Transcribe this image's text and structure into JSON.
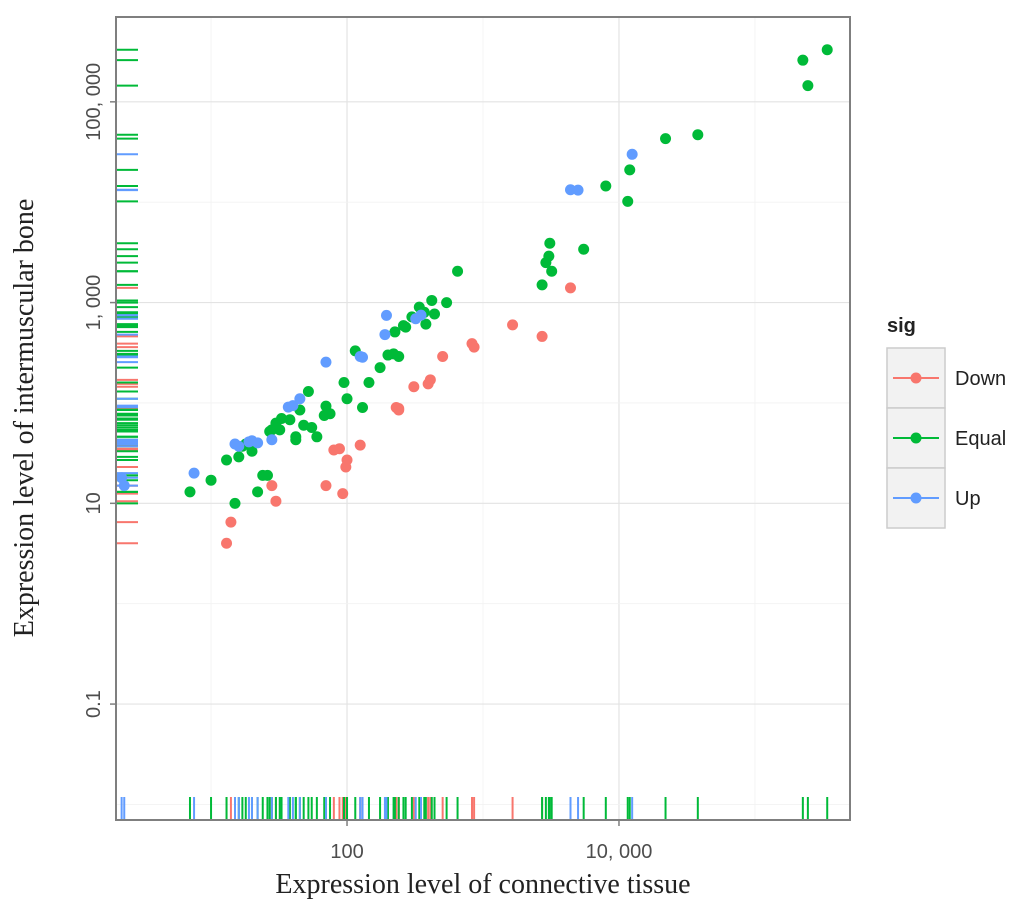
{
  "chart_data": {
    "type": "scatter",
    "x_scale": "log10",
    "y_scale": "log10",
    "xlim": [
      2,
      500000
    ],
    "ylim": [
      0.007,
      700000
    ],
    "x_ticks": [
      {
        "value": 100,
        "label": "100"
      },
      {
        "value": 10000,
        "label": "10, 000"
      }
    ],
    "y_ticks": [
      {
        "value": 0.1,
        "label": "0.1"
      },
      {
        "value": 10,
        "label": "10"
      },
      {
        "value": 1000,
        "label": "1, 000"
      },
      {
        "value": 100000,
        "label": "100, 000"
      }
    ],
    "xlabel": "Expression level of connective tissue",
    "ylabel": "Expression level of intermuscular bone",
    "grid": true,
    "rug": true,
    "legend": {
      "title": "sig",
      "position": "right"
    },
    "series": [
      {
        "name": "Down",
        "color": "#F8766D",
        "points": [
          [
            13,
            4
          ],
          [
            14,
            6.5
          ],
          [
            28,
            15
          ],
          [
            30,
            10.5
          ],
          [
            70,
            15
          ],
          [
            80,
            34
          ],
          [
            88,
            35
          ],
          [
            93,
            12.5
          ],
          [
            98,
            23
          ],
          [
            100,
            27
          ],
          [
            125,
            38
          ],
          [
            230,
            90
          ],
          [
            240,
            85
          ],
          [
            240,
            88
          ],
          [
            310,
            145
          ],
          [
            395,
            155
          ],
          [
            410,
            170
          ],
          [
            505,
            290
          ],
          [
            830,
            390
          ],
          [
            860,
            360
          ],
          [
            1650,
            600
          ],
          [
            2720,
            460
          ],
          [
            4400,
            1400
          ]
        ]
      },
      {
        "name": "Equal",
        "color": "#00BA38",
        "points": [
          [
            7,
            13
          ],
          [
            10,
            17
          ],
          [
            13,
            27
          ],
          [
            15,
            10
          ],
          [
            16,
            29
          ],
          [
            17,
            37
          ],
          [
            18,
            39
          ],
          [
            20,
            33
          ],
          [
            22,
            13
          ],
          [
            24,
            19
          ],
          [
            26,
            19
          ],
          [
            27,
            52
          ],
          [
            28,
            54
          ],
          [
            30,
            63
          ],
          [
            32,
            54
          ],
          [
            33,
            70
          ],
          [
            38,
            68
          ],
          [
            42,
            43
          ],
          [
            42,
            46
          ],
          [
            45,
            85
          ],
          [
            48,
            60
          ],
          [
            52,
            130
          ],
          [
            55,
            57
          ],
          [
            60,
            46
          ],
          [
            68,
            75
          ],
          [
            70,
            93
          ],
          [
            75,
            78
          ],
          [
            95,
            160
          ],
          [
            100,
            110
          ],
          [
            115,
            330
          ],
          [
            130,
            90
          ],
          [
            145,
            160
          ],
          [
            175,
            225
          ],
          [
            200,
            300
          ],
          [
            220,
            308
          ],
          [
            225,
            510
          ],
          [
            240,
            290
          ],
          [
            260,
            590
          ],
          [
            270,
            570
          ],
          [
            300,
            720
          ],
          [
            340,
            900
          ],
          [
            370,
            800
          ],
          [
            380,
            610
          ],
          [
            420,
            1050
          ],
          [
            440,
            770
          ],
          [
            540,
            1000
          ],
          [
            650,
            2050
          ],
          [
            2720,
            1500
          ],
          [
            2900,
            2500
          ],
          [
            3050,
            2900
          ],
          [
            3100,
            3900
          ],
          [
            3200,
            2050
          ],
          [
            5500,
            3400
          ],
          [
            8000,
            14500
          ],
          [
            11600,
            10200
          ],
          [
            12000,
            21000
          ],
          [
            22000,
            43000
          ],
          [
            38000,
            47000
          ],
          [
            225000,
            260000
          ],
          [
            245000,
            145000
          ],
          [
            340000,
            330000
          ]
        ]
      },
      {
        "name": "Up",
        "color": "#619CFF",
        "points": [
          [
            2.2,
            18
          ],
          [
            2.3,
            15
          ],
          [
            7.5,
            20
          ],
          [
            15,
            39
          ],
          [
            16,
            37
          ],
          [
            19,
            41
          ],
          [
            20,
            42
          ],
          [
            22,
            40
          ],
          [
            28,
            43
          ],
          [
            37,
            91
          ],
          [
            40,
            94
          ],
          [
            45,
            110
          ],
          [
            70,
            255
          ],
          [
            125,
            290
          ],
          [
            130,
            285
          ],
          [
            190,
            480
          ],
          [
            195,
            745
          ],
          [
            320,
            690
          ],
          [
            350,
            750
          ],
          [
            4400,
            13300
          ],
          [
            5000,
            13200
          ],
          [
            12500,
            30000
          ]
        ]
      }
    ]
  }
}
